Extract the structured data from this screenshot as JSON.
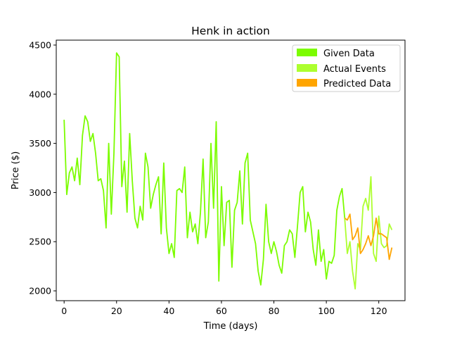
{
  "chart_data": {
    "type": "line",
    "title": "Henk in action",
    "xlabel": "Time (days)",
    "ylabel": "Price ($)",
    "xlim": [
      -3,
      130
    ],
    "ylim": [
      1900,
      4550
    ],
    "xticks": [
      0,
      20,
      40,
      60,
      80,
      100,
      120
    ],
    "yticks": [
      2000,
      2500,
      3000,
      3500,
      4000,
      4500
    ],
    "grid": false,
    "legend_position": "top-right",
    "series": [
      {
        "name": "Given Data",
        "color": "#7cfc00",
        "x": [
          0,
          1,
          2,
          3,
          4,
          5,
          6,
          7,
          8,
          9,
          10,
          11,
          12,
          13,
          14,
          15,
          16,
          17,
          18,
          19,
          20,
          21,
          22,
          23,
          24,
          25,
          26,
          27,
          28,
          29,
          30,
          31,
          32,
          33,
          34,
          35,
          36,
          37,
          38,
          39,
          40,
          41,
          42,
          43,
          44,
          45,
          46,
          47,
          48,
          49,
          50,
          51,
          52,
          53,
          54,
          55,
          56,
          57,
          58,
          59,
          60,
          61,
          62,
          63,
          64,
          65,
          66,
          67,
          68,
          69,
          70,
          71,
          72,
          73,
          74,
          75,
          76,
          77,
          78,
          79,
          80,
          81,
          82,
          83,
          84,
          85,
          86,
          87,
          88,
          89,
          90,
          91,
          92,
          93,
          94,
          95,
          96,
          97,
          98,
          99,
          100,
          101,
          102,
          103,
          104,
          105,
          106,
          107
        ],
        "values": [
          3740,
          2980,
          3200,
          3260,
          3120,
          3350,
          3080,
          3580,
          3780,
          3720,
          3520,
          3600,
          3400,
          3120,
          3140,
          3020,
          2640,
          3500,
          2780,
          3400,
          4420,
          4380,
          3060,
          3320,
          2800,
          3600,
          3120,
          2740,
          2640,
          2860,
          2720,
          3400,
          3260,
          2840,
          2980,
          3080,
          3160,
          2580,
          3300,
          2640,
          2380,
          2480,
          2340,
          3020,
          3040,
          3000,
          3260,
          2540,
          2800,
          2600,
          2680,
          2480,
          2800,
          3340,
          2540,
          2700,
          3500,
          2840,
          3720,
          2100,
          3060,
          2460,
          2900,
          2920,
          2240,
          2820,
          2900,
          3220,
          2680,
          3300,
          3400,
          2720,
          2600,
          2480,
          2200,
          2060,
          2320,
          2880,
          2500,
          2380,
          2500,
          2400,
          2260,
          2180,
          2460,
          2500,
          2620,
          2580,
          2340,
          2660,
          3000,
          3060,
          2600,
          2800,
          2700,
          2420,
          2260,
          2620,
          2300,
          2420,
          2120,
          2300,
          2280,
          2360,
          2820,
          2960,
          3040,
          2740
        ]
      },
      {
        "name": "Actual Events",
        "color": "#adff2f",
        "x": [
          107,
          108,
          109,
          110,
          111,
          112,
          113,
          114,
          115,
          116,
          117,
          118,
          119,
          120,
          121,
          122,
          123,
          124,
          125
        ],
        "values": [
          2740,
          2380,
          2500,
          2200,
          2020,
          2480,
          2420,
          2860,
          2940,
          2820,
          3160,
          2380,
          2300,
          2760,
          2480,
          2440,
          2460,
          2680,
          2620
        ]
      },
      {
        "name": "Predicted Data",
        "color": "#ffa500",
        "x": [
          107,
          108,
          109,
          110,
          111,
          112,
          113,
          114,
          115,
          116,
          117,
          118,
          119,
          120,
          121,
          122,
          123,
          124,
          125
        ],
        "values": [
          2740,
          2720,
          2780,
          2520,
          2560,
          2640,
          2380,
          2420,
          2480,
          2560,
          2460,
          2560,
          2740,
          2580,
          2580,
          2560,
          2540,
          2320,
          2440
        ]
      }
    ]
  }
}
